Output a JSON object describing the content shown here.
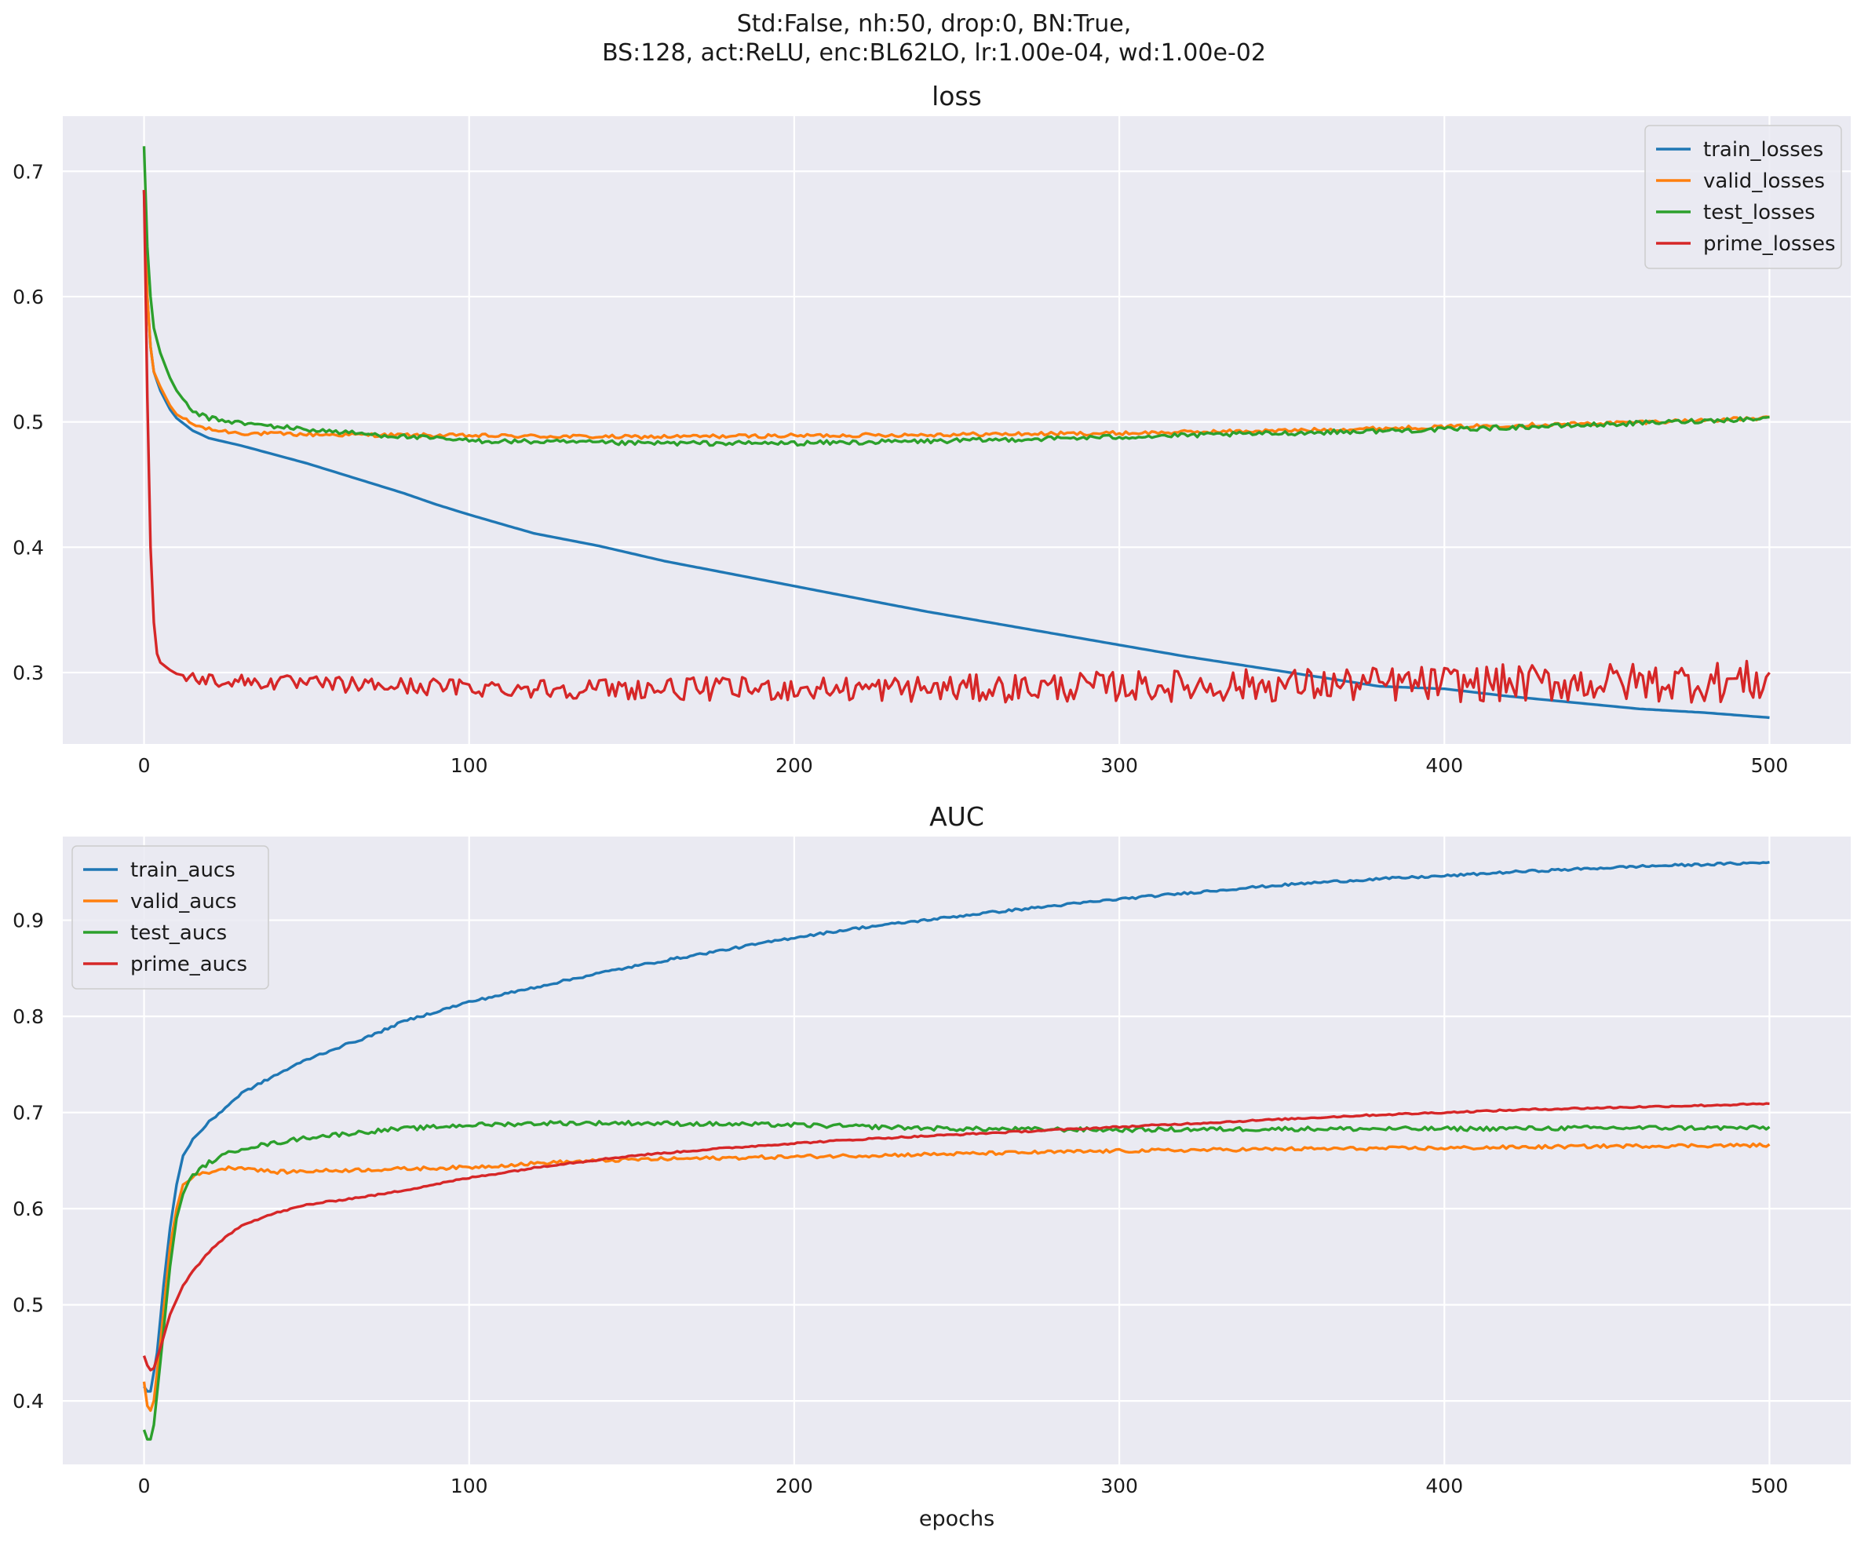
{
  "figure": {
    "suptitle_lines": [
      "Std:False, nh:50, drop:0, BN:True,",
      "BS:128, act:ReLU, enc:BL62LO, lr:1.00e-04, wd:1.00e-02"
    ]
  },
  "chart_data": [
    {
      "type": "line",
      "title": "loss",
      "xlabel": "",
      "ylabel": "",
      "xlim": [
        -25,
        525
      ],
      "ylim": [
        0.243,
        0.744
      ],
      "xticks": [
        0,
        100,
        200,
        300,
        400,
        500
      ],
      "yticks": [
        0.3,
        0.4,
        0.5,
        0.6,
        0.7
      ],
      "grid": true,
      "legend_position": "top-right",
      "series": [
        {
          "name": "train_losses",
          "color": "#1f77b4",
          "points": [
            [
              0,
              0.685
            ],
            [
              1,
              0.6
            ],
            [
              2,
              0.56
            ],
            [
              3,
              0.54
            ],
            [
              5,
              0.525
            ],
            [
              8,
              0.51
            ],
            [
              10,
              0.503
            ],
            [
              15,
              0.493
            ],
            [
              20,
              0.487
            ],
            [
              30,
              0.481
            ],
            [
              40,
              0.474
            ],
            [
              50,
              0.467
            ],
            [
              60,
              0.459
            ],
            [
              70,
              0.451
            ],
            [
              80,
              0.443
            ],
            [
              90,
              0.434
            ],
            [
              100,
              0.426
            ],
            [
              120,
              0.411
            ],
            [
              140,
              0.401
            ],
            [
              160,
              0.389
            ],
            [
              180,
              0.379
            ],
            [
              200,
              0.369
            ],
            [
              220,
              0.359
            ],
            [
              240,
              0.349
            ],
            [
              260,
              0.34
            ],
            [
              280,
              0.331
            ],
            [
              300,
              0.322
            ],
            [
              320,
              0.313
            ],
            [
              340,
              0.305
            ],
            [
              360,
              0.297
            ],
            [
              380,
              0.289
            ],
            [
              400,
              0.287
            ],
            [
              420,
              0.281
            ],
            [
              440,
              0.276
            ],
            [
              460,
              0.271
            ],
            [
              480,
              0.268
            ],
            [
              500,
              0.264
            ]
          ],
          "noise": 0
        },
        {
          "name": "valid_losses",
          "color": "#ff7f0e",
          "points": [
            [
              0,
              0.685
            ],
            [
              1,
              0.6
            ],
            [
              2,
              0.56
            ],
            [
              3,
              0.54
            ],
            [
              5,
              0.528
            ],
            [
              8,
              0.513
            ],
            [
              10,
              0.506
            ],
            [
              15,
              0.498
            ],
            [
              20,
              0.494
            ],
            [
              30,
              0.491
            ],
            [
              50,
              0.49
            ],
            [
              100,
              0.489
            ],
            [
              150,
              0.488
            ],
            [
              200,
              0.489
            ],
            [
              250,
              0.49
            ],
            [
              300,
              0.491
            ],
            [
              350,
              0.493
            ],
            [
              400,
              0.496
            ],
            [
              450,
              0.499
            ],
            [
              500,
              0.503
            ]
          ],
          "noise": 0.0015
        },
        {
          "name": "test_losses",
          "color": "#2ca02c",
          "points": [
            [
              0,
              0.72
            ],
            [
              1,
              0.64
            ],
            [
              2,
              0.6
            ],
            [
              3,
              0.575
            ],
            [
              5,
              0.555
            ],
            [
              8,
              0.535
            ],
            [
              10,
              0.525
            ],
            [
              15,
              0.508
            ],
            [
              20,
              0.503
            ],
            [
              30,
              0.499
            ],
            [
              50,
              0.494
            ],
            [
              70,
              0.49
            ],
            [
              100,
              0.485
            ],
            [
              150,
              0.483
            ],
            [
              200,
              0.483
            ],
            [
              250,
              0.485
            ],
            [
              300,
              0.488
            ],
            [
              350,
              0.491
            ],
            [
              400,
              0.494
            ],
            [
              450,
              0.498
            ],
            [
              500,
              0.503
            ]
          ],
          "noise": 0.0018
        },
        {
          "name": "prime_losses",
          "color": "#d62728",
          "points": [
            [
              0,
              0.685
            ],
            [
              1,
              0.52
            ],
            [
              2,
              0.4
            ],
            [
              3,
              0.34
            ],
            [
              4,
              0.315
            ],
            [
              5,
              0.308
            ],
            [
              8,
              0.302
            ],
            [
              10,
              0.299
            ],
            [
              15,
              0.296
            ],
            [
              20,
              0.294
            ],
            [
              50,
              0.291
            ],
            [
              100,
              0.288
            ],
            [
              150,
              0.287
            ],
            [
              200,
              0.287
            ],
            [
              250,
              0.287
            ],
            [
              300,
              0.289
            ],
            [
              350,
              0.29
            ],
            [
              400,
              0.291
            ],
            [
              450,
              0.292
            ],
            [
              500,
              0.293
            ]
          ],
          "noise": 0.005,
          "noise_growth": 0.012
        }
      ]
    },
    {
      "type": "line",
      "title": "AUC",
      "xlabel": "epochs",
      "ylabel": "",
      "xlim": [
        -25,
        525
      ],
      "ylim": [
        0.334,
        0.987
      ],
      "xticks": [
        0,
        100,
        200,
        300,
        400,
        500
      ],
      "yticks": [
        0.4,
        0.5,
        0.6,
        0.7,
        0.8,
        0.9
      ],
      "grid": true,
      "legend_position": "top-left",
      "series": [
        {
          "name": "train_aucs",
          "color": "#1f77b4",
          "points": [
            [
              0,
              0.415
            ],
            [
              1,
              0.41
            ],
            [
              2,
              0.41
            ],
            [
              4,
              0.45
            ],
            [
              6,
              0.52
            ],
            [
              8,
              0.58
            ],
            [
              10,
              0.625
            ],
            [
              12,
              0.655
            ],
            [
              15,
              0.672
            ],
            [
              20,
              0.69
            ],
            [
              25,
              0.705
            ],
            [
              30,
              0.72
            ],
            [
              40,
              0.738
            ],
            [
              50,
              0.755
            ],
            [
              60,
              0.768
            ],
            [
              70,
              0.78
            ],
            [
              80,
              0.795
            ],
            [
              100,
              0.815
            ],
            [
              120,
              0.83
            ],
            [
              140,
              0.845
            ],
            [
              160,
              0.858
            ],
            [
              180,
              0.87
            ],
            [
              200,
              0.882
            ],
            [
              220,
              0.892
            ],
            [
              240,
              0.9
            ],
            [
              260,
              0.908
            ],
            [
              280,
              0.915
            ],
            [
              300,
              0.922
            ],
            [
              320,
              0.928
            ],
            [
              340,
              0.934
            ],
            [
              360,
              0.939
            ],
            [
              380,
              0.943
            ],
            [
              400,
              0.946
            ],
            [
              420,
              0.95
            ],
            [
              440,
              0.953
            ],
            [
              460,
              0.956
            ],
            [
              480,
              0.958
            ],
            [
              500,
              0.96
            ]
          ],
          "noise": 0.0012
        },
        {
          "name": "valid_aucs",
          "color": "#ff7f0e",
          "points": [
            [
              0,
              0.42
            ],
            [
              1,
              0.395
            ],
            [
              2,
              0.39
            ],
            [
              3,
              0.4
            ],
            [
              5,
              0.46
            ],
            [
              8,
              0.56
            ],
            [
              10,
              0.6
            ],
            [
              12,
              0.625
            ],
            [
              15,
              0.634
            ],
            [
              20,
              0.638
            ],
            [
              25,
              0.642
            ],
            [
              30,
              0.643
            ],
            [
              40,
              0.638
            ],
            [
              50,
              0.639
            ],
            [
              75,
              0.641
            ],
            [
              100,
              0.643
            ],
            [
              125,
              0.648
            ],
            [
              150,
              0.651
            ],
            [
              200,
              0.654
            ],
            [
              250,
              0.657
            ],
            [
              300,
              0.66
            ],
            [
              350,
              0.662
            ],
            [
              400,
              0.663
            ],
            [
              450,
              0.665
            ],
            [
              500,
              0.666
            ]
          ],
          "noise": 0.0018
        },
        {
          "name": "test_aucs",
          "color": "#2ca02c",
          "points": [
            [
              0,
              0.37
            ],
            [
              1,
              0.36
            ],
            [
              2,
              0.36
            ],
            [
              3,
              0.375
            ],
            [
              5,
              0.44
            ],
            [
              8,
              0.54
            ],
            [
              10,
              0.59
            ],
            [
              12,
              0.615
            ],
            [
              15,
              0.635
            ],
            [
              20,
              0.648
            ],
            [
              25,
              0.656
            ],
            [
              30,
              0.663
            ],
            [
              40,
              0.668
            ],
            [
              50,
              0.674
            ],
            [
              75,
              0.682
            ],
            [
              100,
              0.687
            ],
            [
              125,
              0.689
            ],
            [
              150,
              0.689
            ],
            [
              175,
              0.688
            ],
            [
              200,
              0.687
            ],
            [
              250,
              0.683
            ],
            [
              300,
              0.682
            ],
            [
              350,
              0.683
            ],
            [
              400,
              0.683
            ],
            [
              450,
              0.684
            ],
            [
              500,
              0.684
            ]
          ],
          "noise": 0.0022
        },
        {
          "name": "prime_aucs",
          "color": "#d62728",
          "points": [
            [
              0,
              0.447
            ],
            [
              1,
              0.437
            ],
            [
              2,
              0.432
            ],
            [
              3,
              0.434
            ],
            [
              5,
              0.455
            ],
            [
              8,
              0.49
            ],
            [
              10,
              0.505
            ],
            [
              12,
              0.52
            ],
            [
              15,
              0.535
            ],
            [
              20,
              0.555
            ],
            [
              25,
              0.57
            ],
            [
              30,
              0.583
            ],
            [
              40,
              0.595
            ],
            [
              50,
              0.604
            ],
            [
              75,
              0.616
            ],
            [
              100,
              0.632
            ],
            [
              125,
              0.645
            ],
            [
              150,
              0.655
            ],
            [
              175,
              0.662
            ],
            [
              200,
              0.668
            ],
            [
              225,
              0.673
            ],
            [
              250,
              0.677
            ],
            [
              275,
              0.681
            ],
            [
              300,
              0.685
            ],
            [
              325,
              0.689
            ],
            [
              350,
              0.693
            ],
            [
              375,
              0.697
            ],
            [
              400,
              0.7
            ],
            [
              425,
              0.703
            ],
            [
              450,
              0.705
            ],
            [
              475,
              0.707
            ],
            [
              500,
              0.709
            ]
          ],
          "noise": 0.0008
        }
      ]
    }
  ]
}
